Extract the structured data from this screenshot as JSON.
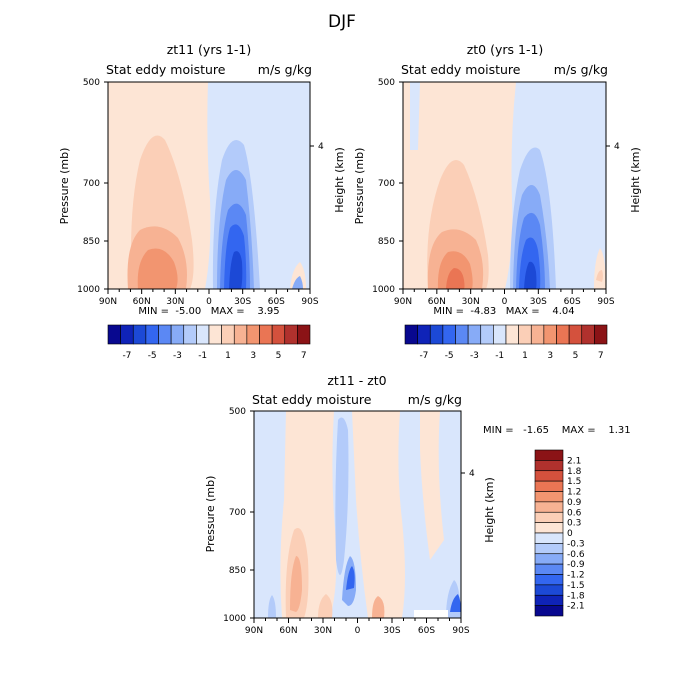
{
  "page_title": "DJF",
  "colors": {
    "neg": [
      "#08088f",
      "#0f23b8",
      "#1c49d6",
      "#3366f0",
      "#5b88f4",
      "#87abf7",
      "#b3cbfa",
      "#d9e6fc"
    ],
    "pos": [
      "#fde5d5",
      "#fbcfb7",
      "#f7b293",
      "#f29570",
      "#ea7554",
      "#d4513d",
      "#b0312d",
      "#8b1316"
    ]
  },
  "chart_data": [
    {
      "type": "heatmap",
      "panel": "top-left",
      "title": "zt11 (yrs 1-1)",
      "subtitle_left": "Stat eddy moisture",
      "subtitle_right": "m/s g/kg",
      "ylabel": "Pressure (mb)",
      "y2label": "Height (km)",
      "x_ticks": [
        "90N",
        "60N",
        "30N",
        "0",
        "30S",
        "60S",
        "90S"
      ],
      "y_ticks": [
        "500",
        "700",
        "850",
        "1000"
      ],
      "y2_ticks": [
        "4"
      ],
      "stats": "MIN =  -5.00   MAX =    3.95",
      "colorbar_labels": [
        "-7",
        "-5",
        "-3",
        "-1",
        "1",
        "3",
        "5",
        "7"
      ]
    },
    {
      "type": "heatmap",
      "panel": "top-right",
      "title": "zt0 (yrs 1-1)",
      "subtitle_left": "Stat eddy moisture",
      "subtitle_right": "m/s g/kg",
      "ylabel": "Pressure (mb)",
      "y2label": "Height (km)",
      "x_ticks": [
        "90N",
        "60N",
        "30N",
        "0",
        "30S",
        "60S",
        "90S"
      ],
      "y_ticks": [
        "500",
        "700",
        "850",
        "1000"
      ],
      "y2_ticks": [
        "4"
      ],
      "stats": "MIN =  -4.83   MAX =    4.04",
      "colorbar_labels": [
        "-7",
        "-5",
        "-3",
        "-1",
        "1",
        "3",
        "5",
        "7"
      ]
    },
    {
      "type": "heatmap",
      "panel": "bottom",
      "title": "zt11 - zt0",
      "subtitle_left": "Stat eddy moisture",
      "subtitle_right": "m/s g/kg",
      "ylabel": "Pressure (mb)",
      "y2label": "Height (km)",
      "x_ticks": [
        "90N",
        "60N",
        "30N",
        "0",
        "30S",
        "60S",
        "90S"
      ],
      "y_ticks": [
        "500",
        "700",
        "850",
        "1000"
      ],
      "y2_ticks": [
        "4"
      ],
      "stats": "MIN =   -1.65    MAX =    1.31",
      "colorbar_labels": [
        "2.1",
        "1.8",
        "1.5",
        "1.2",
        "0.9",
        "0.6",
        "0.3",
        "0",
        "-0.3",
        "-0.6",
        "-0.9",
        "-1.2",
        "-1.5",
        "-1.8",
        "-2.1"
      ]
    }
  ]
}
